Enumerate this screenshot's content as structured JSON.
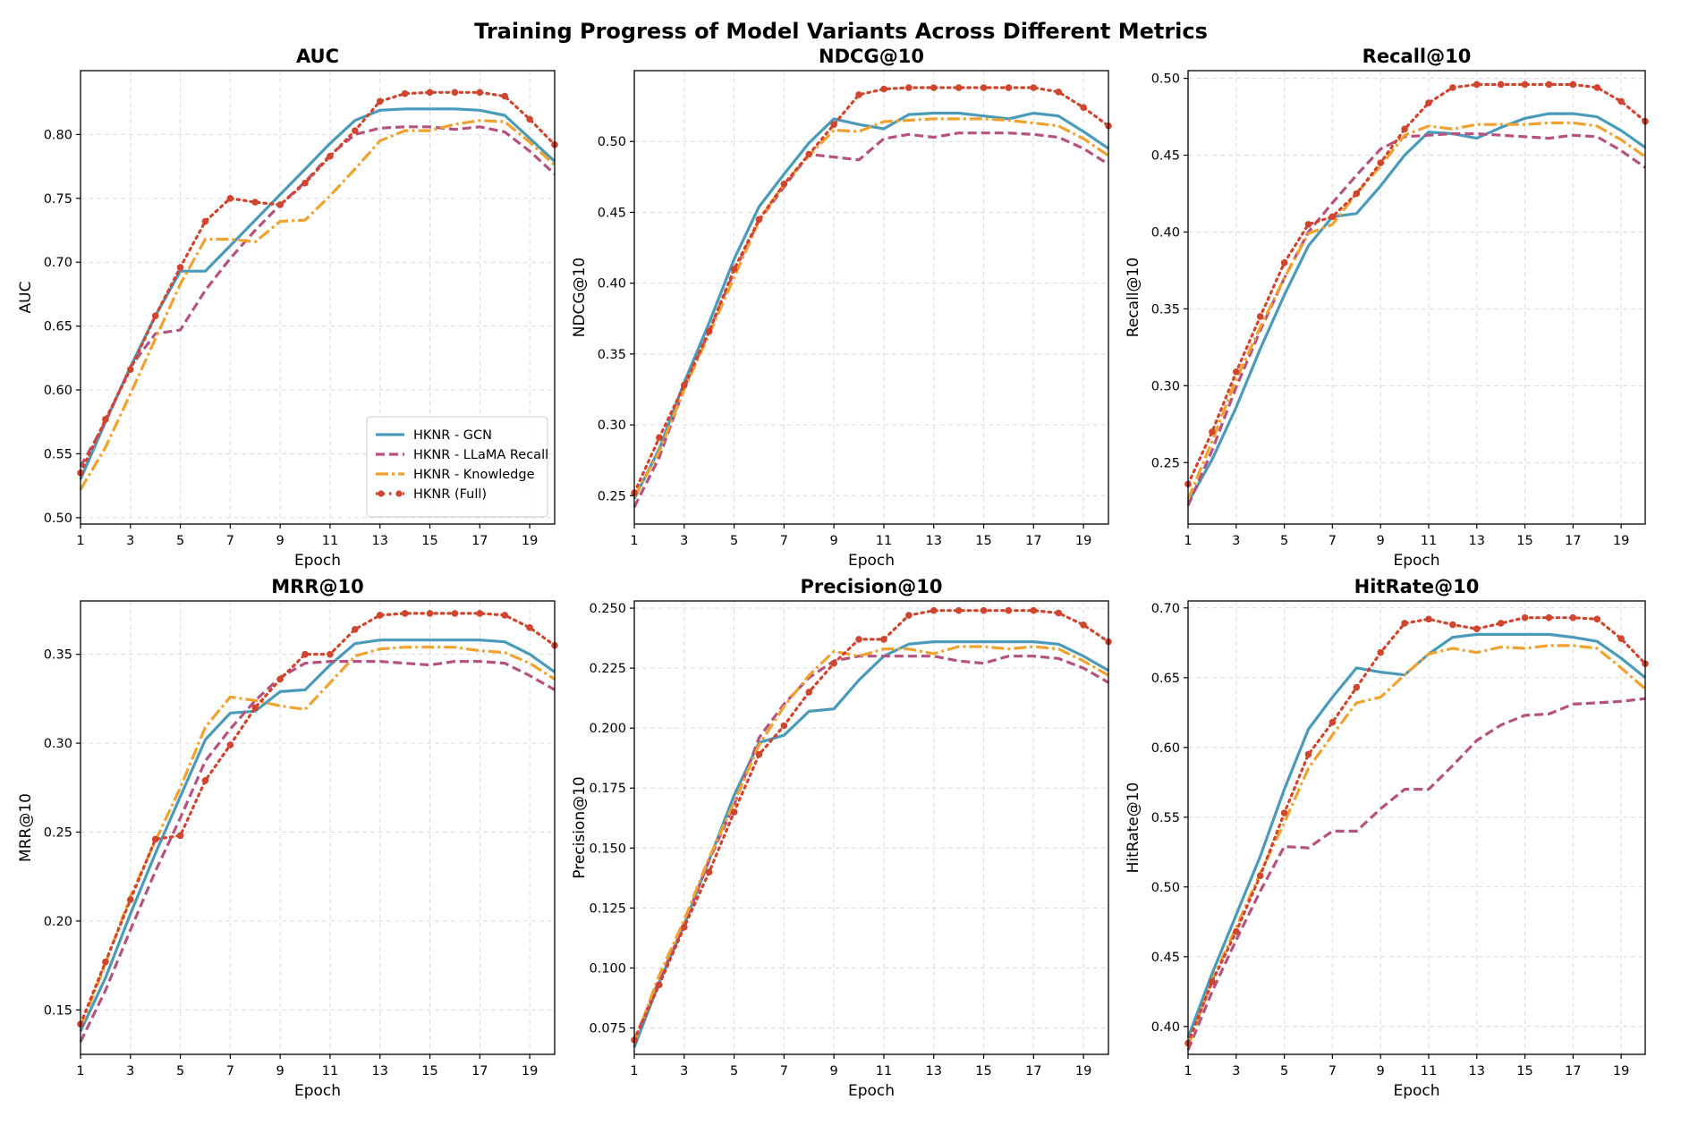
{
  "figure": {
    "title": "Training Progress of Model Variants Across Different Metrics"
  },
  "series_styles": [
    {
      "name": "HKNR - GCN",
      "color": "#4a9aba",
      "dash": "",
      "marker": false
    },
    {
      "name": "HKNR - LLaMA Recall",
      "color": "#b5527f",
      "dash": "10 5",
      "marker": false
    },
    {
      "name": "HKNR - Knowledge",
      "color": "#f0a12e",
      "dash": "14 4 3 4",
      "marker": false
    },
    {
      "name": "HKNR (Full)",
      "color": "#d0452e",
      "dash": "2.5 5",
      "marker": true
    }
  ],
  "chart_data": [
    {
      "type": "line",
      "title": "AUC",
      "xlabel": "Epoch",
      "ylabel": "AUC",
      "x": [
        1,
        2,
        3,
        4,
        5,
        6,
        7,
        8,
        9,
        10,
        11,
        12,
        13,
        14,
        15,
        16,
        17,
        18,
        19,
        20
      ],
      "xticks": [
        1,
        3,
        5,
        7,
        9,
        11,
        13,
        15,
        17,
        19
      ],
      "xlim": [
        1,
        20
      ],
      "ylim": [
        0.495,
        0.85
      ],
      "yticks": [
        0.5,
        0.55,
        0.6,
        0.65,
        0.7,
        0.75,
        0.8
      ],
      "ytick_labels": [
        "0.50",
        "0.55",
        "0.60",
        "0.65",
        "0.70",
        "0.75",
        "0.80"
      ],
      "legend": "lower right",
      "series": [
        {
          "name": "HKNR - GCN",
          "values": [
            0.53,
            0.575,
            0.618,
            0.658,
            0.693,
            0.693,
            0.713,
            0.733,
            0.753,
            0.773,
            0.793,
            0.811,
            0.819,
            0.82,
            0.82,
            0.82,
            0.819,
            0.815,
            0.797,
            0.779
          ]
        },
        {
          "name": "HKNR - LLaMA Recall",
          "values": [
            0.54,
            0.575,
            0.618,
            0.644,
            0.647,
            0.678,
            0.703,
            0.725,
            0.745,
            0.763,
            0.784,
            0.8,
            0.805,
            0.806,
            0.806,
            0.804,
            0.806,
            0.802,
            0.787,
            0.769
          ]
        },
        {
          "name": "HKNR - Knowledge",
          "values": [
            0.522,
            0.555,
            0.597,
            0.64,
            0.683,
            0.718,
            0.718,
            0.716,
            0.732,
            0.733,
            0.752,
            0.773,
            0.795,
            0.803,
            0.803,
            0.808,
            0.811,
            0.81,
            0.794,
            0.776
          ]
        },
        {
          "name": "HKNR (Full)",
          "values": [
            0.535,
            0.577,
            0.616,
            0.658,
            0.696,
            0.732,
            0.75,
            0.747,
            0.745,
            0.762,
            0.783,
            0.803,
            0.826,
            0.832,
            0.833,
            0.833,
            0.833,
            0.83,
            0.812,
            0.792
          ]
        }
      ]
    },
    {
      "type": "line",
      "title": "NDCG@10",
      "xlabel": "Epoch",
      "ylabel": "NDCG@10",
      "x": [
        1,
        2,
        3,
        4,
        5,
        6,
        7,
        8,
        9,
        10,
        11,
        12,
        13,
        14,
        15,
        16,
        17,
        18,
        19,
        20
      ],
      "xticks": [
        1,
        3,
        5,
        7,
        9,
        11,
        13,
        15,
        17,
        19
      ],
      "xlim": [
        1,
        20
      ],
      "ylim": [
        0.23,
        0.55
      ],
      "yticks": [
        0.25,
        0.3,
        0.35,
        0.4,
        0.45,
        0.5
      ],
      "ytick_labels": [
        "0.25",
        "0.30",
        "0.35",
        "0.40",
        "0.45",
        "0.50"
      ],
      "series": [
        {
          "name": "HKNR - GCN",
          "values": [
            0.248,
            0.283,
            0.33,
            0.372,
            0.417,
            0.454,
            0.477,
            0.499,
            0.516,
            0.512,
            0.509,
            0.519,
            0.52,
            0.52,
            0.518,
            0.516,
            0.52,
            0.518,
            0.507,
            0.495
          ]
        },
        {
          "name": "HKNR - LLaMA Recall",
          "values": [
            0.242,
            0.277,
            0.326,
            0.366,
            0.408,
            0.444,
            0.468,
            0.491,
            0.489,
            0.487,
            0.502,
            0.505,
            0.503,
            0.506,
            0.506,
            0.506,
            0.505,
            0.503,
            0.495,
            0.484
          ]
        },
        {
          "name": "HKNR - Knowledge",
          "values": [
            0.249,
            0.281,
            0.325,
            0.364,
            0.404,
            0.444,
            0.47,
            0.49,
            0.508,
            0.507,
            0.514,
            0.515,
            0.516,
            0.516,
            0.516,
            0.515,
            0.513,
            0.511,
            0.502,
            0.49
          ]
        },
        {
          "name": "HKNR (Full)",
          "values": [
            0.252,
            0.291,
            0.328,
            0.366,
            0.41,
            0.445,
            0.47,
            0.491,
            0.512,
            0.533,
            0.537,
            0.538,
            0.538,
            0.538,
            0.538,
            0.538,
            0.538,
            0.535,
            0.524,
            0.511
          ]
        }
      ]
    },
    {
      "type": "line",
      "title": "Recall@10",
      "xlabel": "Epoch",
      "ylabel": "Recall@10",
      "x": [
        1,
        2,
        3,
        4,
        5,
        6,
        7,
        8,
        9,
        10,
        11,
        12,
        13,
        14,
        15,
        16,
        17,
        18,
        19,
        20
      ],
      "xticks": [
        1,
        3,
        5,
        7,
        9,
        11,
        13,
        15,
        17,
        19
      ],
      "xlim": [
        1,
        20
      ],
      "ylim": [
        0.21,
        0.505
      ],
      "yticks": [
        0.25,
        0.3,
        0.35,
        0.4,
        0.45,
        0.5
      ],
      "ytick_labels": [
        "0.25",
        "0.30",
        "0.35",
        "0.40",
        "0.45",
        "0.50"
      ],
      "series": [
        {
          "name": "HKNR - GCN",
          "values": [
            0.224,
            0.252,
            0.286,
            0.324,
            0.359,
            0.391,
            0.41,
            0.412,
            0.43,
            0.45,
            0.465,
            0.464,
            0.461,
            0.468,
            0.474,
            0.477,
            0.477,
            0.475,
            0.466,
            0.455
          ]
        },
        {
          "name": "HKNR - LLaMA Recall",
          "values": [
            0.222,
            0.258,
            0.299,
            0.336,
            0.37,
            0.4,
            0.419,
            0.437,
            0.454,
            0.462,
            0.463,
            0.464,
            0.464,
            0.463,
            0.462,
            0.461,
            0.463,
            0.462,
            0.453,
            0.442
          ]
        },
        {
          "name": "HKNR - Knowledge",
          "values": [
            0.226,
            0.264,
            0.304,
            0.338,
            0.37,
            0.399,
            0.405,
            0.425,
            0.443,
            0.463,
            0.469,
            0.467,
            0.47,
            0.47,
            0.47,
            0.471,
            0.471,
            0.469,
            0.46,
            0.449
          ]
        },
        {
          "name": "HKNR (Full)",
          "values": [
            0.236,
            0.27,
            0.309,
            0.345,
            0.38,
            0.405,
            0.41,
            0.425,
            0.445,
            0.467,
            0.484,
            0.494,
            0.496,
            0.496,
            0.496,
            0.496,
            0.496,
            0.494,
            0.485,
            0.472
          ]
        }
      ]
    },
    {
      "type": "line",
      "title": "MRR@10",
      "xlabel": "Epoch",
      "ylabel": "MRR@10",
      "x": [
        1,
        2,
        3,
        4,
        5,
        6,
        7,
        8,
        9,
        10,
        11,
        12,
        13,
        14,
        15,
        16,
        17,
        18,
        19,
        20
      ],
      "xticks": [
        1,
        3,
        5,
        7,
        9,
        11,
        13,
        15,
        17,
        19
      ],
      "xlim": [
        1,
        20
      ],
      "ylim": [
        0.125,
        0.38
      ],
      "yticks": [
        0.15,
        0.2,
        0.25,
        0.3,
        0.35
      ],
      "ytick_labels": [
        "0.15",
        "0.20",
        "0.25",
        "0.30",
        "0.35"
      ],
      "series": [
        {
          "name": "HKNR - GCN",
          "values": [
            0.138,
            0.168,
            0.204,
            0.238,
            0.27,
            0.302,
            0.317,
            0.318,
            0.329,
            0.33,
            0.344,
            0.356,
            0.358,
            0.358,
            0.358,
            0.358,
            0.358,
            0.357,
            0.35,
            0.34
          ]
        },
        {
          "name": "HKNR - LLaMA Recall",
          "values": [
            0.132,
            0.161,
            0.195,
            0.228,
            0.258,
            0.29,
            0.308,
            0.324,
            0.337,
            0.345,
            0.346,
            0.346,
            0.346,
            0.345,
            0.344,
            0.346,
            0.346,
            0.345,
            0.338,
            0.33
          ]
        },
        {
          "name": "HKNR - Knowledge",
          "values": [
            0.14,
            0.176,
            0.214,
            0.245,
            0.275,
            0.309,
            0.326,
            0.324,
            0.321,
            0.319,
            0.334,
            0.349,
            0.353,
            0.354,
            0.354,
            0.354,
            0.352,
            0.351,
            0.345,
            0.336
          ]
        },
        {
          "name": "HKNR (Full)",
          "values": [
            0.142,
            0.177,
            0.212,
            0.246,
            0.248,
            0.279,
            0.299,
            0.32,
            0.336,
            0.35,
            0.35,
            0.364,
            0.372,
            0.373,
            0.373,
            0.373,
            0.373,
            0.372,
            0.365,
            0.355
          ]
        }
      ]
    },
    {
      "type": "line",
      "title": "Precision@10",
      "xlabel": "Epoch",
      "ylabel": "Precision@10",
      "x": [
        1,
        2,
        3,
        4,
        5,
        6,
        7,
        8,
        9,
        10,
        11,
        12,
        13,
        14,
        15,
        16,
        17,
        18,
        19,
        20
      ],
      "xticks": [
        1,
        3,
        5,
        7,
        9,
        11,
        13,
        15,
        17,
        19
      ],
      "xlim": [
        1,
        20
      ],
      "ylim": [
        0.064,
        0.253
      ],
      "yticks": [
        0.075,
        0.1,
        0.125,
        0.15,
        0.175,
        0.2,
        0.225,
        0.25
      ],
      "ytick_labels": [
        "0.075",
        "0.100",
        "0.125",
        "0.150",
        "0.175",
        "0.200",
        "0.225",
        "0.250"
      ],
      "series": [
        {
          "name": "HKNR - GCN",
          "values": [
            0.067,
            0.094,
            0.118,
            0.145,
            0.172,
            0.194,
            0.197,
            0.207,
            0.208,
            0.22,
            0.23,
            0.235,
            0.236,
            0.236,
            0.236,
            0.236,
            0.236,
            0.235,
            0.23,
            0.224
          ]
        },
        {
          "name": "HKNR - LLaMA Recall",
          "values": [
            0.07,
            0.095,
            0.118,
            0.145,
            0.168,
            0.196,
            0.21,
            0.221,
            0.228,
            0.23,
            0.23,
            0.23,
            0.23,
            0.228,
            0.227,
            0.23,
            0.23,
            0.229,
            0.225,
            0.219
          ]
        },
        {
          "name": "HKNR - Knowledge",
          "values": [
            0.069,
            0.097,
            0.12,
            0.146,
            0.169,
            0.193,
            0.209,
            0.222,
            0.232,
            0.23,
            0.233,
            0.233,
            0.231,
            0.234,
            0.234,
            0.233,
            0.234,
            0.233,
            0.228,
            0.222
          ]
        },
        {
          "name": "HKNR (Full)",
          "values": [
            0.07,
            0.093,
            0.117,
            0.14,
            0.165,
            0.189,
            0.201,
            0.215,
            0.227,
            0.237,
            0.237,
            0.247,
            0.249,
            0.249,
            0.249,
            0.249,
            0.249,
            0.248,
            0.243,
            0.236
          ]
        }
      ]
    },
    {
      "type": "line",
      "title": "HitRate@10",
      "xlabel": "Epoch",
      "ylabel": "HitRate@10",
      "x": [
        1,
        2,
        3,
        4,
        5,
        6,
        7,
        8,
        9,
        10,
        11,
        12,
        13,
        14,
        15,
        16,
        17,
        18,
        19,
        20
      ],
      "xticks": [
        1,
        3,
        5,
        7,
        9,
        11,
        13,
        15,
        17,
        19
      ],
      "xlim": [
        1,
        20
      ],
      "ylim": [
        0.38,
        0.705
      ],
      "yticks": [
        0.4,
        0.45,
        0.5,
        0.55,
        0.6,
        0.65,
        0.7
      ],
      "ytick_labels": [
        "0.40",
        "0.45",
        "0.50",
        "0.55",
        "0.60",
        "0.65",
        "0.70"
      ],
      "series": [
        {
          "name": "HKNR - GCN",
          "values": [
            0.392,
            0.438,
            0.48,
            0.522,
            0.57,
            0.613,
            0.636,
            0.657,
            0.654,
            0.652,
            0.667,
            0.679,
            0.681,
            0.681,
            0.681,
            0.681,
            0.679,
            0.676,
            0.664,
            0.65
          ]
        },
        {
          "name": "HKNR - LLaMA Recall",
          "values": [
            0.383,
            0.425,
            0.462,
            0.497,
            0.529,
            0.528,
            0.54,
            0.54,
            0.556,
            0.57,
            0.57,
            0.587,
            0.605,
            0.616,
            0.623,
            0.624,
            0.631,
            0.632,
            0.633,
            0.635
          ]
        },
        {
          "name": "HKNR - Knowledge",
          "values": [
            0.386,
            0.433,
            0.471,
            0.51,
            0.546,
            0.585,
            0.609,
            0.632,
            0.636,
            0.652,
            0.667,
            0.671,
            0.668,
            0.672,
            0.671,
            0.673,
            0.673,
            0.671,
            0.657,
            0.642
          ]
        },
        {
          "name": "HKNR (Full)",
          "values": [
            0.388,
            0.432,
            0.468,
            0.508,
            0.553,
            0.595,
            0.618,
            0.643,
            0.668,
            0.689,
            0.692,
            0.688,
            0.685,
            0.689,
            0.693,
            0.693,
            0.693,
            0.692,
            0.678,
            0.66
          ]
        }
      ]
    }
  ]
}
